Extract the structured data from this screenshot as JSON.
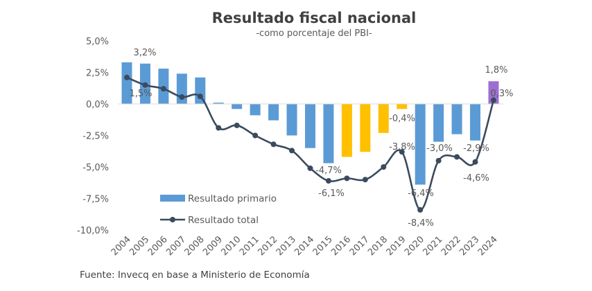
{
  "chart_data": {
    "type": "bar+line",
    "title": "Resultado fiscal nacional",
    "subtitle": "-como porcentaje del PBI-",
    "source": "Fuente: Invecq en base a Ministerio de Economía",
    "categories": [
      "2004",
      "2005",
      "2006",
      "2007",
      "2008",
      "2009",
      "2010",
      "2011",
      "2012",
      "2013",
      "2014",
      "2015",
      "2016",
      "2017",
      "2018",
      "2019",
      "2020",
      "2021",
      "2022",
      "2023",
      "2024"
    ],
    "series": [
      {
        "name": "Resultado primario",
        "type": "bar",
        "values": [
          3.3,
          3.2,
          2.8,
          2.4,
          2.1,
          0.1,
          -0.4,
          -0.9,
          -1.3,
          -2.5,
          -3.5,
          -4.7,
          -4.2,
          -3.8,
          -2.3,
          -0.4,
          -6.4,
          -3.0,
          -2.4,
          -2.9,
          1.8
        ],
        "colors": [
          "#5b9bd5",
          "#5b9bd5",
          "#5b9bd5",
          "#5b9bd5",
          "#5b9bd5",
          "#5b9bd5",
          "#5b9bd5",
          "#5b9bd5",
          "#5b9bd5",
          "#5b9bd5",
          "#5b9bd5",
          "#5b9bd5",
          "#ffc000",
          "#ffc000",
          "#ffc000",
          "#ffc000",
          "#5b9bd5",
          "#5b9bd5",
          "#5b9bd5",
          "#5b9bd5",
          "#9e6fd1"
        ]
      },
      {
        "name": "Resultado total",
        "type": "line",
        "color": "#3b4a5e",
        "values": [
          2.1,
          1.5,
          1.2,
          0.55,
          0.6,
          -1.9,
          -1.7,
          -2.5,
          -3.2,
          -3.7,
          -5.1,
          -6.1,
          -5.9,
          -6.0,
          -5.0,
          -3.8,
          -8.4,
          -4.5,
          -4.2,
          -4.6,
          0.3
        ]
      }
    ],
    "ylim": [
      -10,
      5
    ],
    "yticks": [
      "-10,0%",
      "-7,5%",
      "-5,0%",
      "-2,5%",
      "0,0%",
      "2,5%",
      "5,0%"
    ],
    "ytick_values": [
      -10,
      -7.5,
      -5,
      -2.5,
      0,
      2.5,
      5
    ],
    "grid": false,
    "legend": "bottom-left",
    "annotations": [
      {
        "text": "3,2%",
        "year": "2005",
        "series": "Resultado primario"
      },
      {
        "text": "1,5%",
        "year": "2005",
        "series": "Resultado total"
      },
      {
        "text": "-4,7%",
        "year": "2015",
        "series": "Resultado primario"
      },
      {
        "text": "-6,1%",
        "year": "2015",
        "series": "Resultado total"
      },
      {
        "text": "-0,4%",
        "year": "2019",
        "series": "Resultado primario"
      },
      {
        "text": "-3,8%",
        "year": "2019",
        "series": "Resultado total"
      },
      {
        "text": "-6,4%",
        "year": "2020",
        "series": "Resultado primario"
      },
      {
        "text": "-8,4%",
        "year": "2020",
        "series": "Resultado total"
      },
      {
        "text": "-3,0%",
        "year": "2021",
        "series": "Resultado primario"
      },
      {
        "text": "-2,9%",
        "year": "2023",
        "series": "Resultado primario"
      },
      {
        "text": "-4,6%",
        "year": "2023",
        "series": "Resultado total"
      },
      {
        "text": "1,8%",
        "year": "2024",
        "series": "Resultado primario"
      },
      {
        "text": "0,3%",
        "year": "2024",
        "series": "Resultado total"
      }
    ]
  }
}
